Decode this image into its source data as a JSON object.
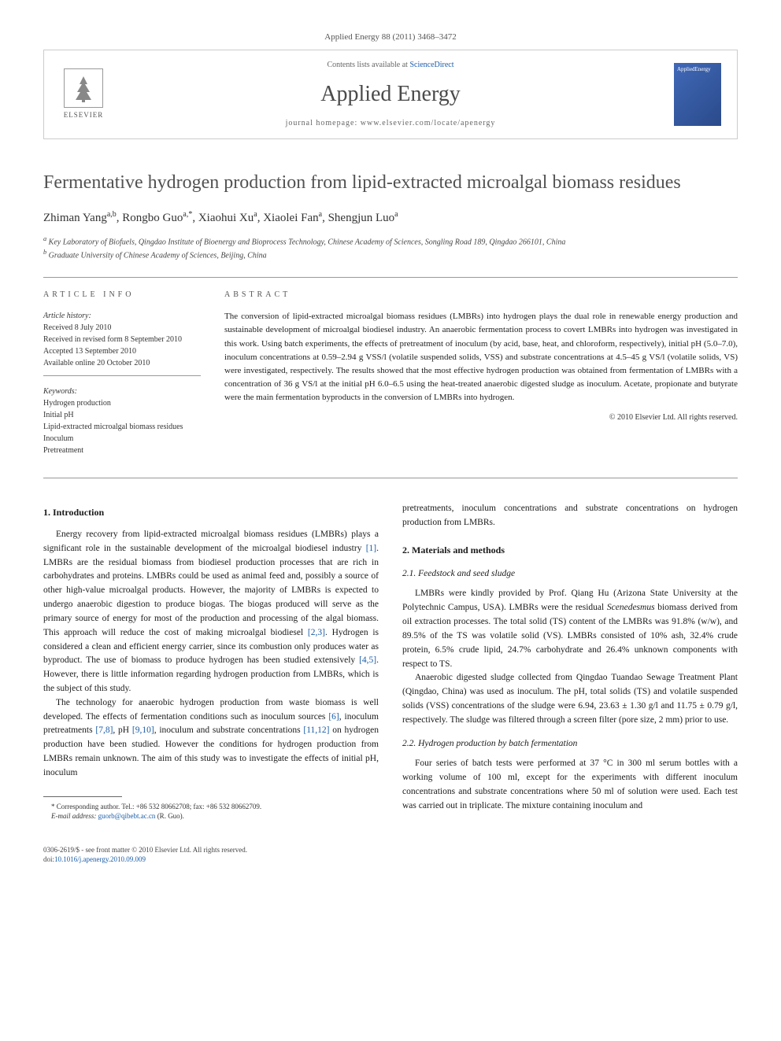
{
  "journal_ref": "Applied Energy 88 (2011) 3468–3472",
  "header": {
    "contents_prefix": "Contents lists available at ",
    "contents_link": "ScienceDirect",
    "journal_name": "Applied Energy",
    "homepage_prefix": "journal homepage: ",
    "homepage_url": "www.elsevier.com/locate/apenergy",
    "elsevier_label": "ELSEVIER",
    "cover_label": "AppliedEnergy"
  },
  "title": "Fermentative hydrogen production from lipid-extracted microalgal biomass residues",
  "authors_html": "Zhiman Yang<sup>a,b</sup>, Rongbo Guo<sup>a,*</sup>, Xiaohui Xu<sup>a</sup>, Xiaolei Fan<sup>a</sup>, Shengjun Luo<sup>a</sup>",
  "affiliations": {
    "a": "Key Laboratory of Biofuels, Qingdao Institute of Bioenergy and Bioprocess Technology, Chinese Academy of Sciences, Songling Road 189, Qingdao 266101, China",
    "b": "Graduate University of Chinese Academy of Sciences, Beijing, China"
  },
  "article_info": {
    "heading": "ARTICLE INFO",
    "history_label": "Article history:",
    "history": [
      "Received 8 July 2010",
      "Received in revised form 8 September 2010",
      "Accepted 13 September 2010",
      "Available online 20 October 2010"
    ],
    "keywords_label": "Keywords:",
    "keywords": [
      "Hydrogen production",
      "Initial pH",
      "Lipid-extracted microalgal biomass residues",
      "Inoculum",
      "Pretreatment"
    ]
  },
  "abstract": {
    "heading": "ABSTRACT",
    "text": "The conversion of lipid-extracted microalgal biomass residues (LMBRs) into hydrogen plays the dual role in renewable energy production and sustainable development of microalgal biodiesel industry. An anaerobic fermentation process to covert LMBRs into hydrogen was investigated in this work. Using batch experiments, the effects of pretreatment of inoculum (by acid, base, heat, and chloroform, respectively), initial pH (5.0–7.0), inoculum concentrations at 0.59–2.94 g VSS/l (volatile suspended solids, VSS) and substrate concentrations at 4.5–45 g VS/l (volatile solids, VS) were investigated, respectively. The results showed that the most effective hydrogen production was obtained from fermentation of LMBRs with a concentration of 36 g VS/l at the initial pH 6.0–6.5 using the heat-treated anaerobic digested sludge as inoculum. Acetate, propionate and butyrate were the main fermentation byproducts in the conversion of LMBRs into hydrogen.",
    "copyright": "© 2010 Elsevier Ltd. All rights reserved."
  },
  "body": {
    "intro_heading": "1. Introduction",
    "intro_p1": "Energy recovery from lipid-extracted microalgal biomass residues (LMBRs) plays a significant role in the sustainable development of the microalgal biodiesel industry [1]. LMBRs are the residual biomass from biodiesel production processes that are rich in carbohydrates and proteins. LMBRs could be used as animal feed and, possibly a source of other high-value microalgal products. However, the majority of LMBRs is expected to undergo anaerobic digestion to produce biogas. The biogas produced will serve as the primary source of energy for most of the production and processing of the algal biomass. This approach will reduce the cost of making microalgal biodiesel [2,3]. Hydrogen is considered a clean and efficient energy carrier, since its combustion only produces water as byproduct. The use of biomass to produce hydrogen has been studied extensively [4,5]. However, there is little information regarding hydrogen production from LMBRs, which is the subject of this study.",
    "intro_p2": "The technology for anaerobic hydrogen production from waste biomass is well developed. The effects of fermentation conditions such as inoculum sources [6], inoculum pretreatments [7,8], pH [9,10], inoculum and substrate concentrations [11,12] on hydrogen production have been studied. However the conditions for hydrogen production from LMBRs remain unknown. The aim of this study was to investigate the effects of initial pH, inoculum",
    "col2_cont": "pretreatments, inoculum concentrations and substrate concentrations on hydrogen production from LMBRs.",
    "materials_heading": "2. Materials and methods",
    "sec21_heading": "2.1. Feedstock and seed sludge",
    "sec21_p1": "LMBRs were kindly provided by Prof. Qiang Hu (Arizona State University at the Polytechnic Campus, USA). LMBRs were the residual Scenedesmus biomass derived from oil extraction processes. The total solid (TS) content of the LMBRs was 91.8% (w/w), and 89.5% of the TS was volatile solid (VS). LMBRs consisted of 10% ash, 32.4% crude protein, 6.5% crude lipid, 24.7% carbohydrate and 26.4% unknown components with respect to TS.",
    "sec21_p2": "Anaerobic digested sludge collected from Qingdao Tuandao Sewage Treatment Plant (Qingdao, China) was used as inoculum. The pH, total solids (TS) and volatile suspended solids (VSS) concentrations of the sludge were 6.94, 23.63 ± 1.30 g/l and 11.75 ± 0.79 g/l, respectively. The sludge was filtered through a screen filter (pore size, 2 mm) prior to use.",
    "sec22_heading": "2.2. Hydrogen production by batch fermentation",
    "sec22_p1": "Four series of batch tests were performed at 37 °C in 300 ml serum bottles with a working volume of 100 ml, except for the experiments with different inoculum concentrations and substrate concentrations where 50 ml of solution were used. Each test was carried out in triplicate. The mixture containing inoculum and"
  },
  "footnote": {
    "corr": "* Corresponding author. Tel.: +86 532 80662708; fax: +86 532 80662709.",
    "email_label": "E-mail address:",
    "email": "guorb@qibebt.ac.cn",
    "email_name": "(R. Guo)."
  },
  "footer": {
    "issn": "0306-2619/$ - see front matter © 2010 Elsevier Ltd. All rights reserved.",
    "doi_label": "doi:",
    "doi": "10.1016/j.apenergy.2010.09.009"
  },
  "refs": [
    "[1]",
    "[2,3]",
    "[4,5]",
    "[6]",
    "[7,8]",
    "[9,10]",
    "[11,12]"
  ],
  "colors": {
    "link": "#1a5da8",
    "title_gray": "#525252",
    "border": "#cccccc",
    "cover_bg": "#4169b8"
  }
}
